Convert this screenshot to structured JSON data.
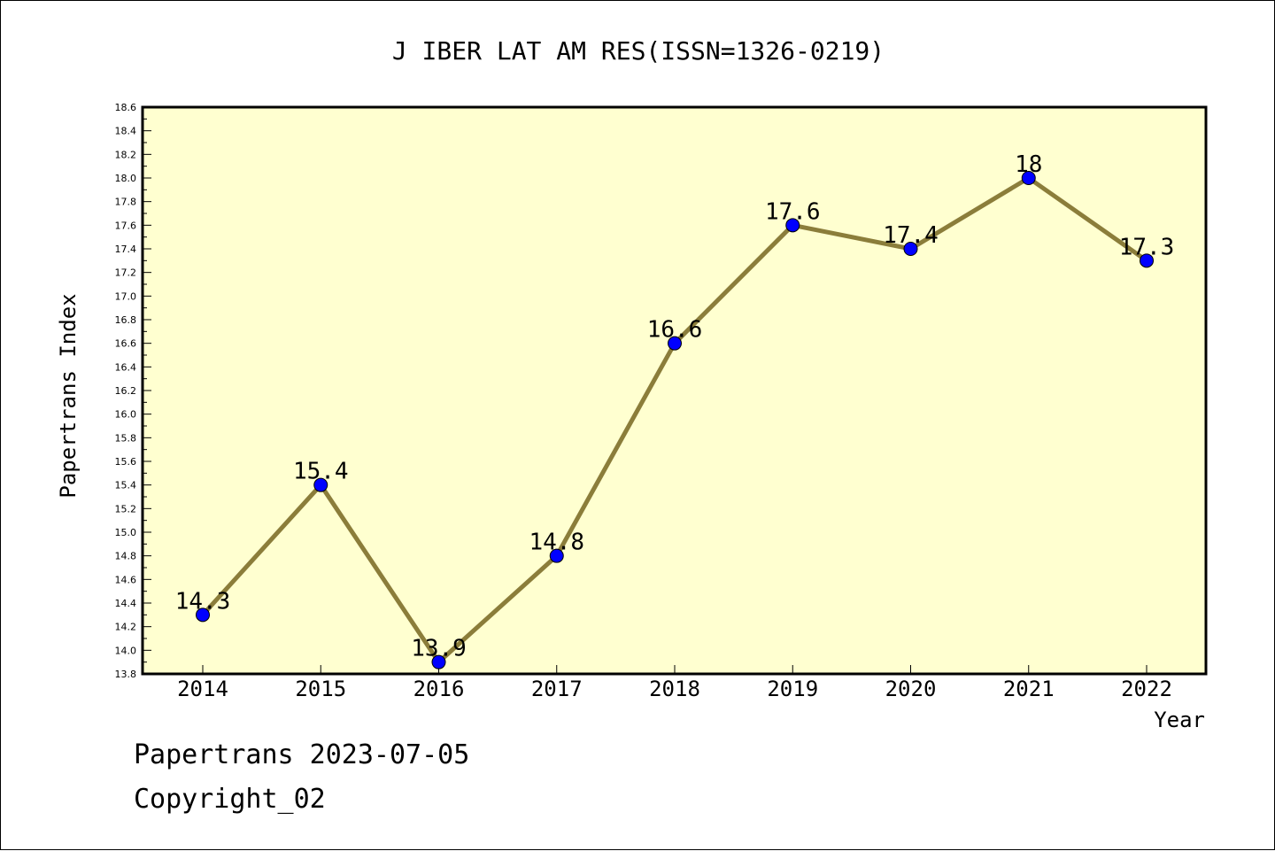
{
  "chart_data": {
    "type": "line",
    "title": "J IBER LAT AM RES(ISSN=1326-0219)",
    "xlabel": "Year",
    "ylabel": "Papertrans Index",
    "categories": [
      "2014",
      "2015",
      "2016",
      "2017",
      "2018",
      "2019",
      "2020",
      "2021",
      "2022"
    ],
    "series": [
      {
        "values": [
          14.3,
          15.4,
          13.9,
          14.8,
          16.6,
          17.6,
          17.4,
          18.0,
          17.3
        ],
        "labels": [
          "14.3",
          "15.4",
          "13.9",
          "14.8",
          "16.6",
          "17.6",
          "17.4",
          "18",
          "17.3"
        ]
      }
    ],
    "ylim": [
      13.8,
      18.6
    ],
    "ytick_labels": [
      "13.8",
      "14.0",
      "14.2",
      "14.4",
      "14.6",
      "14.8",
      "15.0",
      "15.2",
      "15.4",
      "15.6",
      "15.8",
      "16.0",
      "16.2",
      "16.4",
      "16.6",
      "16.8",
      "17.0",
      "17.2",
      "17.4",
      "17.6",
      "17.8",
      "18.0",
      "18.2",
      "18.4",
      "18.6"
    ],
    "grid": false,
    "colors": {
      "plot_background": "#ffffd0",
      "line": "#8b7d3a",
      "marker": "#0000ff"
    }
  },
  "footer": {
    "line1": "Papertrans 2023-07-05",
    "line2": "Copyright_02"
  }
}
